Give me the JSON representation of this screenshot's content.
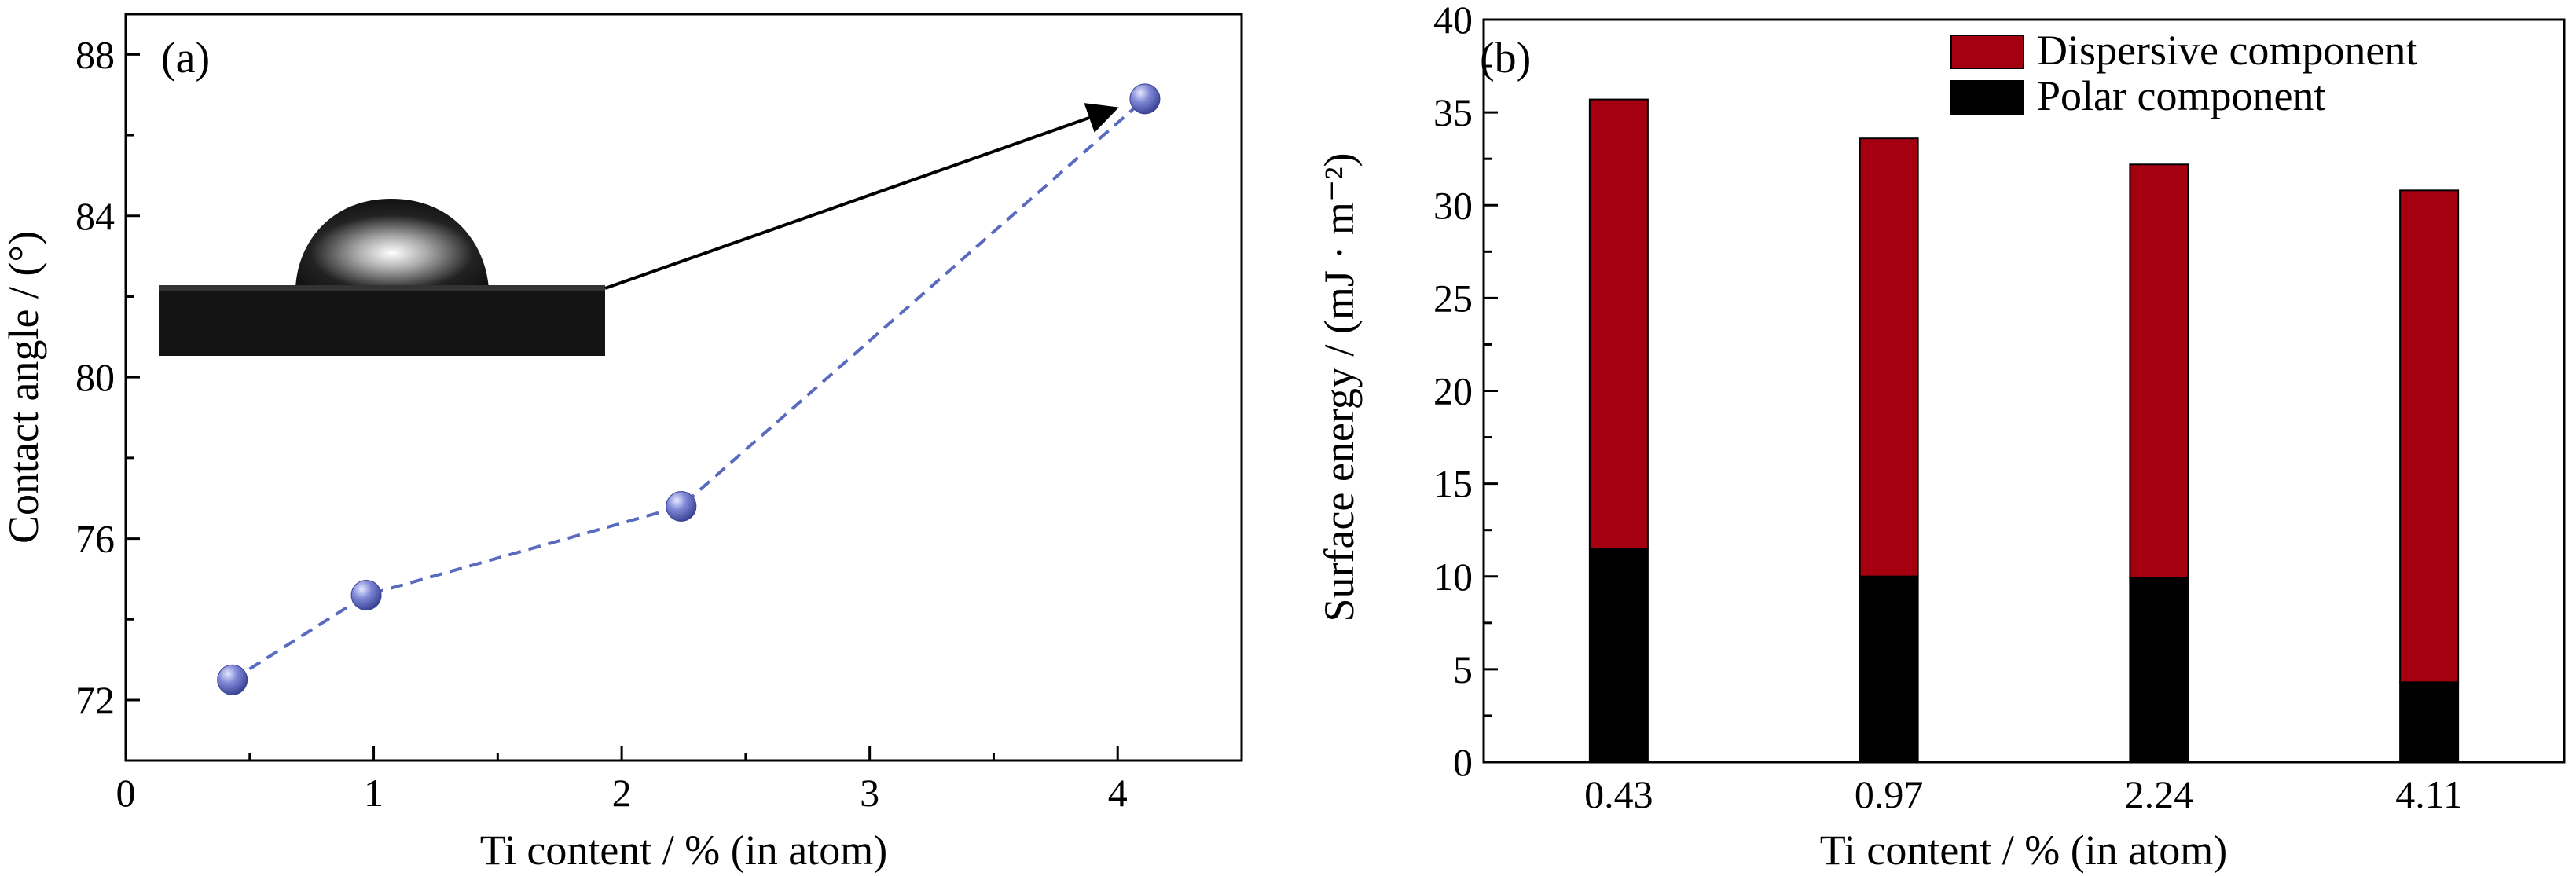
{
  "chart_data": [
    {
      "panel": "(a)",
      "type": "line",
      "x": [
        0.43,
        0.97,
        2.24,
        4.11
      ],
      "y": [
        72.5,
        74.6,
        76.8,
        86.9
      ],
      "xlim": [
        0,
        4.5
      ],
      "ylim": [
        70.5,
        89
      ],
      "xticks": [
        "0",
        "1",
        "2",
        "3",
        "4"
      ],
      "yticks": [
        "72",
        "76",
        "80",
        "84",
        "88"
      ],
      "xlabel": "Ti content / % (in atom)",
      "ylabel": "Contact angle / (°)",
      "grid": false,
      "line_style": "dashed",
      "line_color": "#5a6bbf",
      "marker_color": "#6b73c9",
      "annotation": "inset droplet image with arrow pointing to the 4.11 point"
    },
    {
      "panel": "(b)",
      "type": "bar",
      "stacked": true,
      "categories": [
        "0.43",
        "0.97",
        "2.24",
        "4.11"
      ],
      "series": [
        {
          "name": "Polar component",
          "values": [
            11.5,
            10.0,
            9.9,
            4.3
          ],
          "color": "#000000"
        },
        {
          "name": "Dispersive component",
          "values": [
            24.2,
            23.6,
            22.3,
            26.5
          ],
          "color": "#a50010"
        }
      ],
      "totals": [
        35.7,
        33.6,
        32.2,
        30.8
      ],
      "ylim": [
        0,
        40
      ],
      "yticks": [
        "0",
        "5",
        "10",
        "15",
        "20",
        "25",
        "30",
        "35",
        "40"
      ],
      "xlabel": "Ti content / % (in atom)",
      "ylabel": "Surface energy / (mJ · m⁻²)",
      "legend_position": "top-right",
      "grid": false
    }
  ]
}
